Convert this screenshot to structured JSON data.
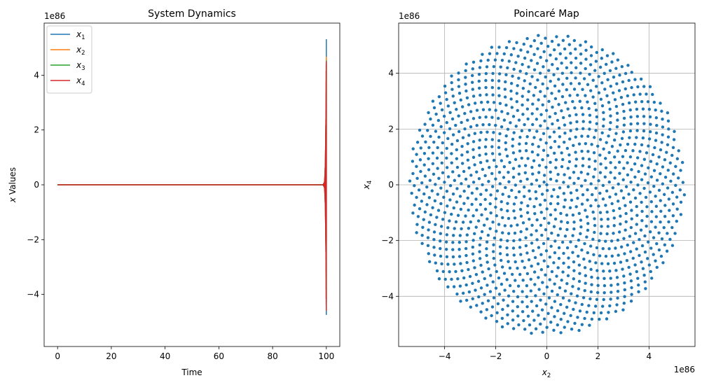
{
  "chart_data": [
    {
      "type": "line",
      "title": "System Dynamics",
      "xlabel": "Time",
      "ylabel": "x Values",
      "ylabel_parts": {
        "italic": "x",
        "rest": " Values"
      },
      "y_offset_text": "1e86",
      "xlim": [
        -5,
        105
      ],
      "ylim": [
        -5.9,
        5.9
      ],
      "xticks": [
        0,
        20,
        40,
        60,
        80,
        100
      ],
      "yticks": [
        -4,
        -2,
        0,
        2,
        4
      ],
      "grid": false,
      "legend_position": "upper-left",
      "series": [
        {
          "name": "x1",
          "base": "x",
          "sub": "1",
          "color": "#1f77b4"
        },
        {
          "name": "x2",
          "base": "x",
          "sub": "2",
          "color": "#ff7f0e"
        },
        {
          "name": "x3",
          "base": "x",
          "sub": "3",
          "color": "#2ca02c"
        },
        {
          "name": "x4",
          "base": "x",
          "sub": "4",
          "color": "#d62728"
        }
      ],
      "behavior": {
        "flat_until": 98.5,
        "growth_end": 100,
        "peak_value": 5.35,
        "note_units": "values in units of 1e86"
      }
    },
    {
      "type": "scatter",
      "title": "Poincaré Map",
      "xlabel_parts": {
        "italic": "x",
        "sub": "2"
      },
      "ylabel_parts": {
        "italic": "x",
        "sub": "4"
      },
      "x_offset_text": "1e86",
      "y_offset_text": "1e86",
      "xlim": [
        -5.8,
        5.8
      ],
      "ylim": [
        -5.8,
        5.8
      ],
      "xticks": [
        -4,
        -2,
        0,
        2,
        4
      ],
      "yticks": [
        -4,
        -2,
        0,
        2,
        4
      ],
      "grid": true,
      "marker_color": "#1f77b4",
      "pattern": {
        "kind": "spiral",
        "max_radius": 5.4,
        "num_points": 1400,
        "golden_angle_deg": 137.508
      }
    }
  ],
  "colors": {
    "axis": "#000000",
    "grid": "#b0b0b0",
    "legend_border": "#cccccc"
  }
}
